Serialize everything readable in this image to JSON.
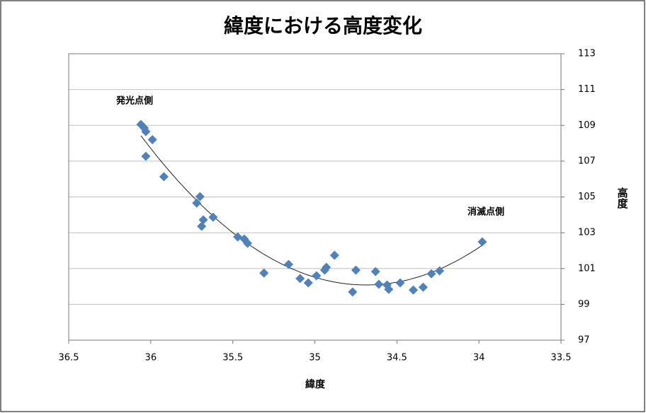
{
  "chart_data": {
    "type": "scatter",
    "title": "緯度における高度変化",
    "x_label": "緯度",
    "y_label": "高度",
    "annotations": [
      "発光点側",
      "消滅点側"
    ],
    "x": [
      36.06,
      36.04,
      36.03,
      35.99,
      36.03,
      35.92,
      35.72,
      35.7,
      35.68,
      35.69,
      35.62,
      35.47,
      35.43,
      35.41,
      35.31,
      35.16,
      35.09,
      35.04,
      34.99,
      34.94,
      34.93,
      34.88,
      34.75,
      34.77,
      34.63,
      34.61,
      34.56,
      34.55,
      34.48,
      34.4,
      34.34,
      34.29,
      34.24,
      33.98
    ],
    "values": [
      109.05,
      108.85,
      108.65,
      108.2,
      107.27,
      106.13,
      104.66,
      105.02,
      103.72,
      103.36,
      103.87,
      102.77,
      102.65,
      102.41,
      100.75,
      101.23,
      100.44,
      100.2,
      100.6,
      100.91,
      101.07,
      101.74,
      100.91,
      99.69,
      100.83,
      100.12,
      100.08,
      99.84,
      100.2,
      99.8,
      99.96,
      100.71,
      100.87,
      102.49
    ],
    "color": "#4f81bd",
    "trendline": true,
    "xlim": [
      36.5,
      33.5
    ],
    "xticks": [
      36.5,
      36,
      35.5,
      35,
      34.5,
      34,
      33.5
    ],
    "ylim": [
      97,
      113
    ],
    "yticks": [
      97,
      99,
      101,
      103,
      105,
      107,
      109,
      111,
      113
    ],
    "grid": true
  }
}
